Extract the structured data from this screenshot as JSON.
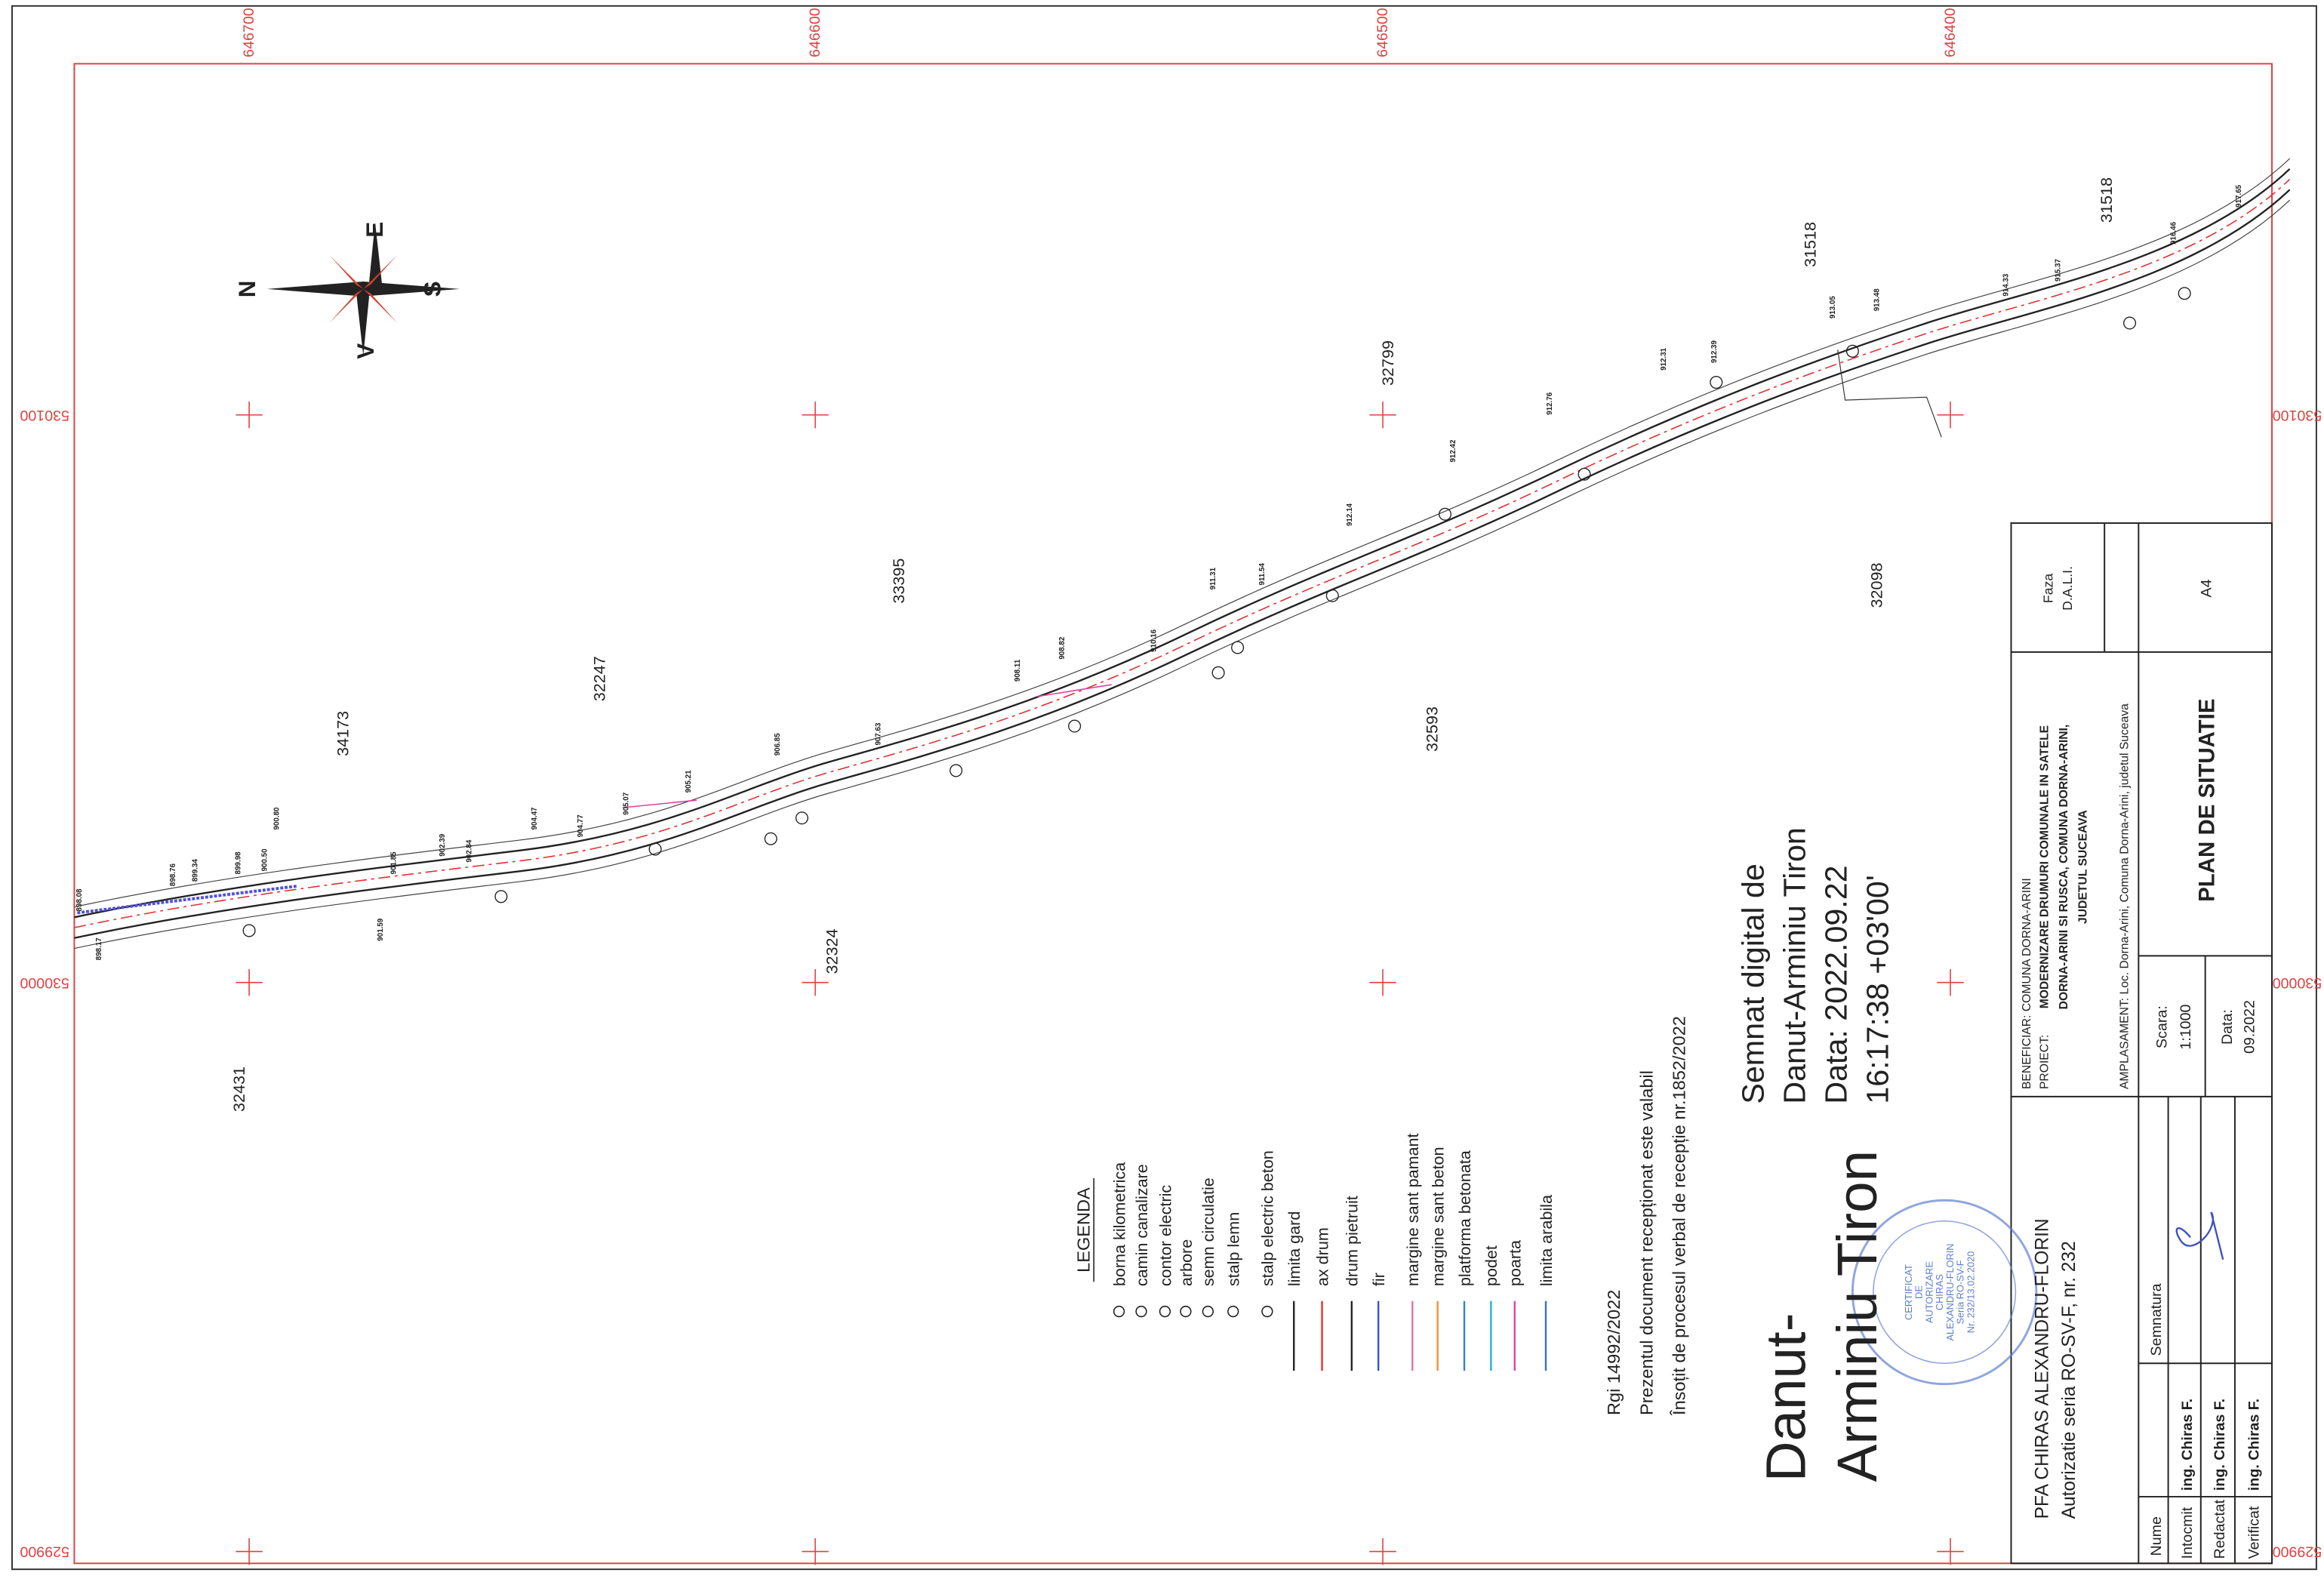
{
  "grid": {
    "x_labels": [
      "646700",
      "646600",
      "646500",
      "646400"
    ],
    "y_labels": [
      "530100",
      "530000",
      "529900"
    ]
  },
  "compass": {
    "n": "N",
    "e": "E",
    "s": "S",
    "v": "V"
  },
  "parcels": [
    "34173",
    "32247",
    "33395",
    "32799",
    "31518",
    "31518",
    "32431",
    "32324",
    "32593",
    "32098"
  ],
  "elevations": [
    "898.08",
    "898.17",
    "898.76",
    "899.34",
    "899.98",
    "900.50",
    "900.80",
    "901.59",
    "901.85",
    "902.39",
    "902.84",
    "904.47",
    "904.77",
    "905.07",
    "905.21",
    "906.85",
    "907.63",
    "908.11",
    "908.82",
    "910.16",
    "911.31",
    "911.54",
    "912.14",
    "912.42",
    "912.76",
    "912.31",
    "912.39",
    "913.05",
    "913.48",
    "914.33",
    "915.37",
    "916.46",
    "917.65"
  ],
  "legend": {
    "title": "LEGENDA",
    "items": [
      "borna kilometrica",
      "camin canalizare",
      "contor electric",
      "arbore",
      "semn circulatie",
      "stalp lemn",
      "stalp electric beton",
      "limita gard",
      "ax drum",
      "drum pietruit",
      "fir",
      "margine sant pamant",
      "margine sant beton",
      "platforma betonata",
      "podet",
      "poarta",
      "limita arabila"
    ]
  },
  "notes": [
    "Rgi 14992/2022",
    "Prezentul document recepționat este valabil",
    "Însoțit de procesul verbal de recepție nr.1852/2022"
  ],
  "signature": {
    "name_line1": "Danut-",
    "name_line2": "Arminiu Tiron",
    "lines": [
      "Semnat digital de",
      "Danut-Arminiu Tiron",
      "Data: 2022.09.22",
      "16:17:38 +03'00'"
    ]
  },
  "stamp": {
    "line1": "PFA CHIRAS ALEXANDRU-FLORIN",
    "line2": "Autorizatie seria RO-SV-F, nr. 232",
    "seal": [
      "CERTIFICAT",
      "DE",
      "AUTORIZARE",
      "CHIRAS",
      "ALEXANDRU-FLORIN",
      "Seria RO-SV-F",
      "Nr. 232/13.02.2020"
    ]
  },
  "title_block": {
    "beneficiar": "BENEFICIAR: COMUNA DORNA-ARINI",
    "proiect_label": "PROIECT:",
    "proiect": [
      "MODERNIZARE DRUMURI COMUNALE IN SATELE",
      "DORNA-ARINI SI RUSCA, COMUNA DORNA-ARINI,",
      "JUDETUL SUCEAVA"
    ],
    "amplasament": "AMPLASAMENT: Loc. Dorna-Arini, Comuna Dorna-Arini, judetul  Suceava",
    "faza_label": "Faza",
    "faza": "D.A.L.I.",
    "format": "A4",
    "scara_label": "Scara:",
    "scara": "1:1000",
    "data_label": "Data:",
    "data": "09.2022",
    "plan": "PLAN DE SITUATIE",
    "table": {
      "header": [
        "Nume",
        "Semnatura"
      ],
      "rows": [
        [
          "Intocmit",
          "ing. Chiras F."
        ],
        [
          "Redactat",
          "ing. Chiras F."
        ],
        [
          "Verificat",
          "ing. Chiras F."
        ]
      ]
    }
  }
}
